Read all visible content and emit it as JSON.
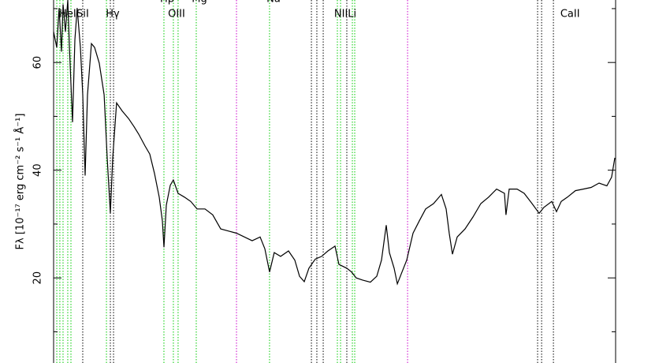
{
  "chart_data": {
    "type": "line",
    "ylabel": "Fλ [10⁻¹⁷ erg cm⁻² s⁻¹ Å⁻¹]",
    "xlim": [
      3787,
      9263
    ],
    "ylim": [
      4.2,
      71.6
    ],
    "yticks": [
      20,
      40,
      60
    ],
    "yminorticks": [
      10,
      30,
      50,
      70
    ],
    "series": [
      {
        "color": "#000000",
        "x": [
          3787,
          3818,
          3841,
          3864,
          3879,
          3902,
          3925,
          3941,
          3971,
          3994,
          4017,
          4048,
          4071,
          4094,
          4117,
          4156,
          4186,
          4232,
          4279,
          4309,
          4340,
          4363,
          4401,
          4455,
          4517,
          4570,
          4616,
          4678,
          4724,
          4770,
          4816,
          4847,
          4862,
          4885,
          4924,
          4954,
          5000,
          5062,
          5123,
          5185,
          5262,
          5338,
          5415,
          5492,
          5569,
          5646,
          5722,
          5799,
          5845,
          5891,
          5937,
          5999,
          6076,
          6137,
          6183,
          6229,
          6275,
          6337,
          6398,
          6460,
          6529,
          6567,
          6644,
          6690,
          6736,
          6798,
          6874,
          6936,
          6982,
          7028,
          7059,
          7105,
          7136,
          7182,
          7228,
          7289,
          7351,
          7412,
          7489,
          7566,
          7612,
          7642,
          7673,
          7719,
          7796,
          7873,
          7950,
          8026,
          8103,
          8180,
          8195,
          8226,
          8303,
          8372,
          8449,
          8518,
          8564,
          8641,
          8687,
          8733,
          8794,
          8871,
          8948,
          9025,
          9102,
          9178,
          9224,
          9255
        ],
        "values": [
          65.7,
          62.8,
          70.1,
          62,
          70.8,
          65.7,
          71.6,
          62.8,
          48.9,
          64.2,
          70.1,
          62.8,
          54,
          39,
          54,
          63.5,
          62.8,
          59.9,
          54,
          42.3,
          32,
          42.3,
          52.5,
          51,
          49.6,
          48.1,
          46.7,
          44.5,
          43,
          39.4,
          35,
          30.6,
          25.7,
          33.5,
          37.2,
          38.2,
          35.7,
          35,
          34.2,
          32.8,
          32.8,
          31.7,
          29.1,
          28.7,
          28.3,
          27.6,
          26.9,
          27.6,
          25.4,
          21.1,
          24.7,
          24,
          25,
          23.3,
          20.3,
          19.3,
          21.8,
          23.5,
          24,
          25,
          25.9,
          22.5,
          21.8,
          21.1,
          20,
          19.6,
          19.2,
          20.3,
          23.3,
          29.8,
          24.7,
          21.8,
          18.9,
          21.1,
          23.3,
          28.3,
          30.6,
          32.8,
          33.8,
          35.5,
          32.8,
          28.3,
          24.4,
          27.6,
          29.1,
          31.3,
          33.8,
          35,
          36.5,
          35.7,
          31.7,
          36.5,
          36.5,
          35.7,
          33.8,
          32,
          33.1,
          34.2,
          32.3,
          34.2,
          35,
          36.2,
          36.5,
          36.8,
          37.6,
          37.1,
          38.7,
          42.3
        ]
      }
    ],
    "lines": [
      {
        "x": 3818,
        "color": "#00cc00"
      },
      {
        "x": 3848,
        "color": "#00cc00"
      },
      {
        "x": 3879,
        "color": "#00cc00"
      },
      {
        "x": 3925,
        "color": "#00cc00"
      },
      {
        "x": 3956,
        "color": "#00cc00"
      },
      {
        "x": 4071,
        "color": "#000000"
      },
      {
        "x": 4302,
        "color": "#00cc00"
      },
      {
        "x": 4340,
        "color": "#000000"
      },
      {
        "x": 4371,
        "color": "#000000"
      },
      {
        "x": 4862,
        "color": "#00cc00"
      },
      {
        "x": 4954,
        "color": "#00cc00"
      },
      {
        "x": 5000,
        "color": "#00cc00"
      },
      {
        "x": 5177,
        "color": "#00cc00"
      },
      {
        "x": 5569,
        "color": "#cc00cc"
      },
      {
        "x": 5891,
        "color": "#00cc00"
      },
      {
        "x": 6299,
        "color": "#000000"
      },
      {
        "x": 6352,
        "color": "#000000"
      },
      {
        "x": 6414,
        "color": "#000000"
      },
      {
        "x": 6552,
        "color": "#00cc00"
      },
      {
        "x": 6583,
        "color": "#00cc00"
      },
      {
        "x": 6644,
        "color": "#000000"
      },
      {
        "x": 6698,
        "color": "#00cc00"
      },
      {
        "x": 6721,
        "color": "#00cc00"
      },
      {
        "x": 7236,
        "color": "#cc00cc"
      },
      {
        "x": 8503,
        "color": "#000000"
      },
      {
        "x": 8542,
        "color": "#000000"
      },
      {
        "x": 8657,
        "color": "#000000"
      }
    ],
    "annotations": [
      {
        "text": "HeI",
        "x": 3925,
        "row": 2
      },
      {
        "text": "SiI",
        "x": 4071,
        "row": 2
      },
      {
        "text": "Hγ",
        "x": 4363,
        "row": 2
      },
      {
        "text": "OIII",
        "x": 4985,
        "row": 2
      },
      {
        "text": "NIILi",
        "x": 6629,
        "row": 2
      },
      {
        "text": "CaII",
        "x": 8819,
        "row": 2
      },
      {
        "text": "Hβ",
        "x": 4893,
        "row": 1
      },
      {
        "text": "Mg",
        "x": 5208,
        "row": 1
      },
      {
        "text": "Na",
        "x": 5930,
        "row": 1
      }
    ]
  }
}
